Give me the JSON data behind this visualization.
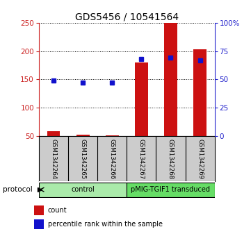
{
  "title": "GDS5456 / 10541564",
  "samples": [
    "GSM1342264",
    "GSM1342265",
    "GSM1342266",
    "GSM1342267",
    "GSM1342268",
    "GSM1342269"
  ],
  "counts": [
    58,
    52,
    51,
    180,
    250,
    203
  ],
  "percentile_ranks_pct": [
    49,
    47,
    47,
    68,
    69,
    67
  ],
  "ylim_left": [
    50,
    250
  ],
  "ylim_right": [
    0,
    100
  ],
  "yticks_left": [
    50,
    100,
    150,
    200,
    250
  ],
  "yticks_right": [
    0,
    25,
    50,
    75,
    100
  ],
  "ytick_labels_right": [
    "0",
    "25",
    "50",
    "75",
    "100%"
  ],
  "groups": [
    {
      "label": "control",
      "samples": [
        0,
        1,
        2
      ],
      "color": "#aaeaaa"
    },
    {
      "label": "pMIG-TGIF1 transduced",
      "samples": [
        3,
        4,
        5
      ],
      "color": "#66dd66"
    }
  ],
  "bar_color": "#cc1111",
  "dot_color": "#1111cc",
  "bar_width": 0.45,
  "bg_color": "#ffffff",
  "sample_box_color": "#cccccc",
  "protocol_label": "protocol",
  "legend_items": [
    "count",
    "percentile rank within the sample"
  ],
  "title_fontsize": 10,
  "tick_fontsize": 7.5,
  "sample_fontsize": 6.2,
  "proto_fontsize": 7,
  "legend_fontsize": 7
}
